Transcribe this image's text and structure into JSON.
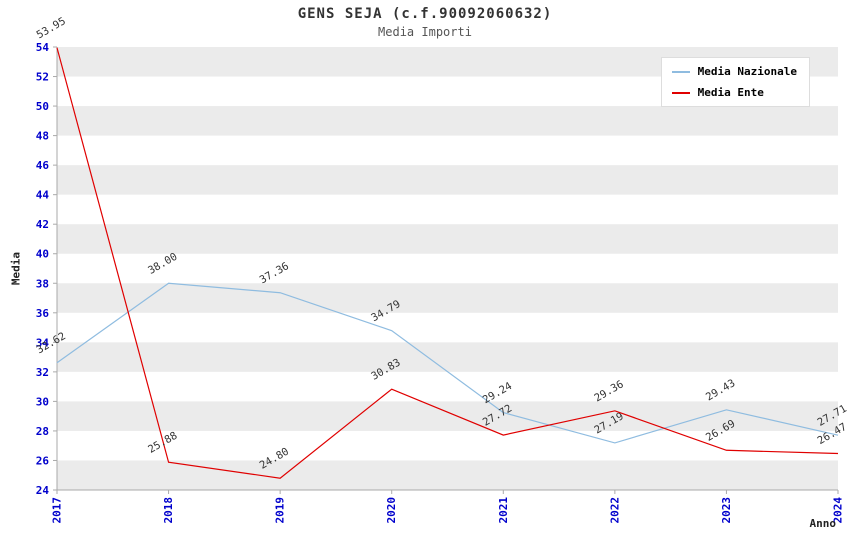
{
  "title": "GENS SEJA (c.f.90092060632)",
  "subtitle": "Media Importi",
  "chart_data": {
    "type": "line",
    "x": [
      2017,
      2018,
      2019,
      2020,
      2021,
      2022,
      2023,
      2024
    ],
    "series": [
      {
        "name": "Media Nazionale",
        "color": "#8FBCE0",
        "values": [
          32.62,
          38.0,
          37.36,
          34.79,
          29.24,
          27.19,
          29.43,
          27.71
        ]
      },
      {
        "name": "Media Ente",
        "color": "#E00000",
        "values": [
          53.95,
          25.88,
          24.8,
          30.83,
          27.72,
          29.36,
          26.69,
          26.47
        ]
      }
    ],
    "xlabel": "Anno",
    "ylabel": "Media",
    "ylim": [
      24,
      54
    ],
    "ytick_step": 2,
    "grid": "banded",
    "legend_position": "top-right"
  },
  "colors": {
    "tick_label": "#0000CC",
    "band": "#EBEBEB",
    "axis_line": "#AAAAAA",
    "value_label": "#333333",
    "title": "#333333",
    "subtitle": "#555555"
  }
}
